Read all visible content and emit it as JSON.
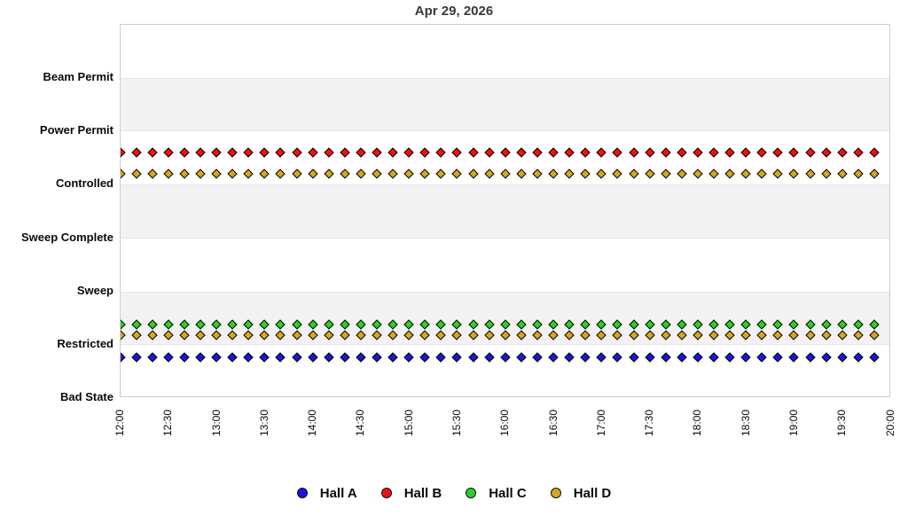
{
  "title": "Apr 29, 2026",
  "chart_data": {
    "type": "scatter",
    "title": "Apr 29, 2026",
    "x_axis": {
      "tick_labels": [
        "12:00",
        "12:30",
        "13:00",
        "13:30",
        "14:00",
        "14:30",
        "15:00",
        "15:30",
        "16:00",
        "16:30",
        "17:00",
        "17:30",
        "18:00",
        "18:30",
        "19:00",
        "19:30",
        "20:00"
      ],
      "span_min": 480,
      "label_rotation_deg": -90,
      "grid": false
    },
    "y_axis": {
      "categories_bottom_to_top": [
        "Bad State",
        "Restricted",
        "Sweep",
        "Sweep Complete",
        "Controlled",
        "Power Permit",
        "Beam Permit"
      ],
      "top_padding_states": 1,
      "grid": false
    },
    "sampling": {
      "first_sample": "12:00",
      "last_sample": "19:50",
      "interval_min": 10,
      "n_points": 48
    },
    "rows": [
      {
        "series": "Hall B",
        "state": "Controlled",
        "value": 4.6,
        "color": "#ee1111"
      },
      {
        "series": "Hall D",
        "state": "Controlled",
        "value": 4.2,
        "color": "#d9a521"
      },
      {
        "series": "Hall C",
        "state": "Restricted",
        "value": 1.38,
        "color": "#28d228"
      },
      {
        "series": "Hall D",
        "state": "Restricted",
        "value": 1.18,
        "color": "#d9a521"
      },
      {
        "series": "Hall A",
        "state": "Restricted",
        "value": 0.77,
        "color": "#1717dd"
      }
    ],
    "bands": {
      "color": "#f2f2f2",
      "between_level_indices": [
        [
          6,
          5
        ],
        [
          4,
          3
        ],
        [
          2,
          1
        ]
      ]
    },
    "legend": {
      "position": "bottom",
      "items": [
        {
          "label": "Hall A",
          "color": "#1717dd"
        },
        {
          "label": "Hall B",
          "color": "#ee1111"
        },
        {
          "label": "Hall C",
          "color": "#28d228"
        },
        {
          "label": "Hall D",
          "color": "#d9a521"
        }
      ]
    }
  }
}
